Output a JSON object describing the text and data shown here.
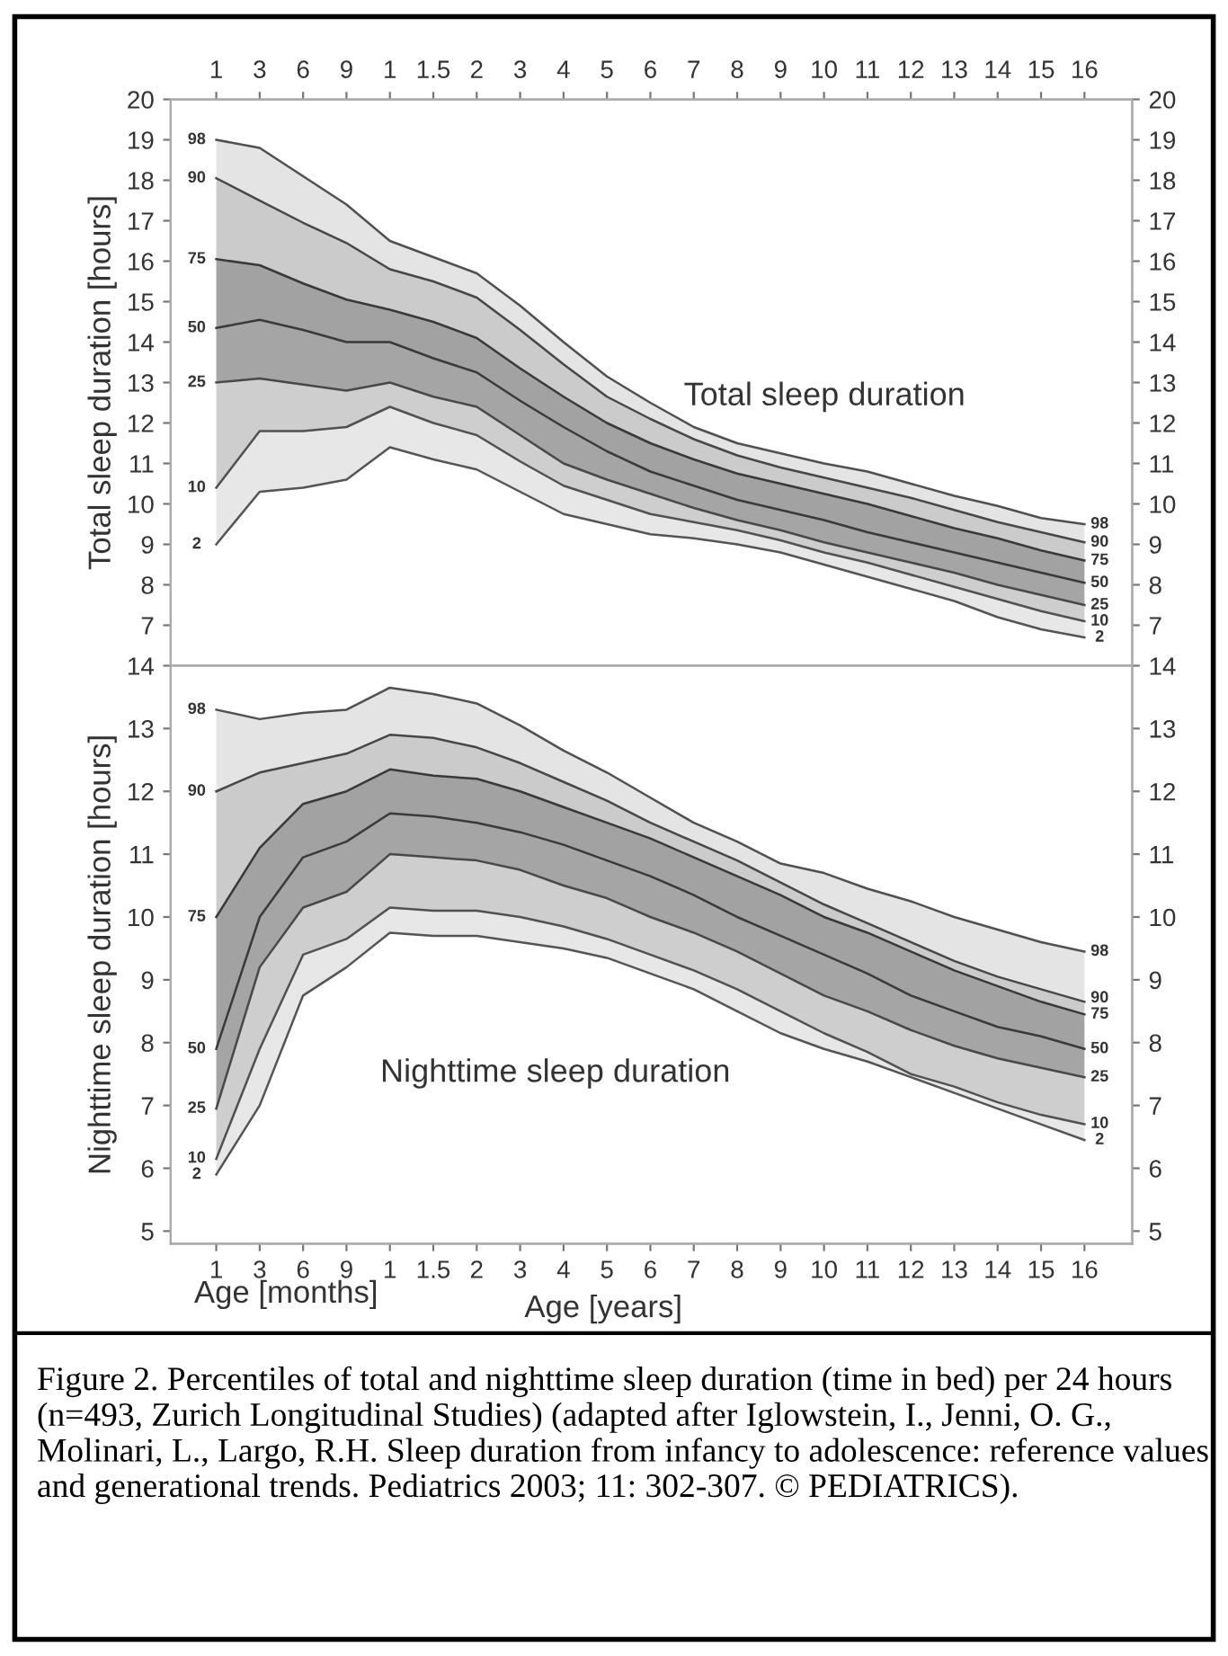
{
  "chart_data": [
    {
      "type": "area",
      "title": "Total sleep duration",
      "ylabel": "Total sleep duration [hours]",
      "categories": [
        "1",
        "3",
        "6",
        "9",
        "1",
        "1.5",
        "2",
        "3",
        "4",
        "5",
        "6",
        "7",
        "8",
        "9",
        "10",
        "11",
        "12",
        "13",
        "14",
        "15",
        "16"
      ],
      "ylim": [
        6,
        20
      ],
      "yticks": [
        7,
        8,
        9,
        10,
        11,
        12,
        13,
        14,
        15,
        16,
        17,
        18,
        19,
        20
      ],
      "y2lim": [
        6,
        20
      ],
      "y2ticks": [
        7,
        8,
        9,
        10,
        11,
        12,
        13,
        14,
        15,
        16,
        17,
        18,
        19,
        20
      ],
      "grid": false,
      "legend": false,
      "marker": "none",
      "line_style": "solid",
      "series": [
        {
          "name": "98",
          "color": "#e4e4e4",
          "values": [
            19.0,
            18.8,
            18.1,
            17.4,
            16.5,
            16.1,
            15.7,
            14.9,
            14.0,
            13.15,
            12.5,
            11.9,
            11.5,
            11.25,
            11.0,
            10.8,
            10.5,
            10.2,
            9.95,
            9.65,
            9.5
          ]
        },
        {
          "name": "90",
          "color": "#cbcbcb",
          "values": [
            18.05,
            17.5,
            16.95,
            16.45,
            15.8,
            15.5,
            15.1,
            14.3,
            13.45,
            12.65,
            12.1,
            11.6,
            11.2,
            10.9,
            10.65,
            10.4,
            10.15,
            9.85,
            9.55,
            9.3,
            9.05
          ]
        },
        {
          "name": "75",
          "color": "#a2a2a2",
          "values": [
            16.05,
            15.9,
            15.45,
            15.05,
            14.8,
            14.5,
            14.1,
            13.35,
            12.65,
            12.0,
            11.5,
            11.1,
            10.75,
            10.5,
            10.25,
            10.0,
            9.7,
            9.4,
            9.15,
            8.85,
            8.6
          ]
        },
        {
          "name": "50",
          "color": "#a5a5a5",
          "values": [
            14.35,
            14.55,
            14.3,
            14.0,
            14.0,
            13.6,
            13.25,
            12.55,
            11.9,
            11.3,
            10.8,
            10.45,
            10.1,
            9.85,
            9.6,
            9.3,
            9.05,
            8.8,
            8.55,
            8.3,
            8.05
          ]
        },
        {
          "name": "25",
          "color": "#cecece",
          "values": [
            13.0,
            13.1,
            12.95,
            12.8,
            13.0,
            12.65,
            12.4,
            11.7,
            11.0,
            10.6,
            10.25,
            9.9,
            9.6,
            9.35,
            9.05,
            8.8,
            8.55,
            8.3,
            8.0,
            7.75,
            7.5
          ]
        },
        {
          "name": "10",
          "color": "#e7e7e7",
          "values": [
            10.4,
            11.8,
            11.8,
            11.9,
            12.4,
            12.0,
            11.7,
            11.05,
            10.45,
            10.1,
            9.75,
            9.55,
            9.35,
            9.1,
            8.8,
            8.55,
            8.25,
            7.95,
            7.65,
            7.35,
            7.1
          ]
        },
        {
          "name": "2",
          "type": "line",
          "color": "#555555",
          "values": [
            9.0,
            10.3,
            10.4,
            10.6,
            11.4,
            11.1,
            10.85,
            10.3,
            9.75,
            9.5,
            9.25,
            9.15,
            9.0,
            8.8,
            8.5,
            8.2,
            7.9,
            7.6,
            7.2,
            6.9,
            6.7
          ]
        }
      ]
    },
    {
      "type": "area",
      "title": "Nighttime sleep duration",
      "ylabel": "Nighttime sleep duration [hours]",
      "xlabel": "Age [years]",
      "annotations": [
        "Age [months]",
        "Figure 2. Percentiles of total and nighttime sleep duration (time in bed) per 24 hours (n=493, Zurich Longitudinal Studies) (adapted after Iglowstein, I., Jenni, O. G., Molinari, L., Largo, R.H. Sleep duration from infancy to adolescence: reference values and generational trends. Pediatrics 2003; 11: 302-307. © PEDIATRICS)."
      ],
      "categories": [
        "1",
        "3",
        "6",
        "9",
        "1",
        "1.5",
        "2",
        "3",
        "4",
        "5",
        "6",
        "7",
        "8",
        "9",
        "10",
        "11",
        "12",
        "13",
        "14",
        "15",
        "16"
      ],
      "ylim": [
        4.8,
        14
      ],
      "yticks": [
        5,
        6,
        7,
        8,
        9,
        10,
        11,
        12,
        13,
        14
      ],
      "y2lim": [
        4.8,
        14
      ],
      "y2ticks": [
        5,
        6,
        7,
        8,
        9,
        10,
        11,
        12,
        13,
        14
      ],
      "grid": false,
      "legend": false,
      "marker": "none",
      "line_style": "solid",
      "series": [
        {
          "name": "98",
          "color": "#e4e4e4",
          "values": [
            13.3,
            13.15,
            13.25,
            13.3,
            13.65,
            13.55,
            13.4,
            13.05,
            12.65,
            12.3,
            11.9,
            11.5,
            11.2,
            10.85,
            10.7,
            10.45,
            10.25,
            10.0,
            9.8,
            9.6,
            9.45
          ]
        },
        {
          "name": "90",
          "color": "#cbcbcb",
          "values": [
            12.0,
            12.3,
            12.45,
            12.6,
            12.9,
            12.85,
            12.7,
            12.45,
            12.15,
            11.85,
            11.5,
            11.2,
            10.9,
            10.55,
            10.2,
            9.9,
            9.6,
            9.3,
            9.05,
            8.85,
            8.65
          ]
        },
        {
          "name": "75",
          "color": "#a2a2a2",
          "values": [
            10.0,
            11.1,
            11.8,
            12.0,
            12.35,
            12.25,
            12.2,
            12.0,
            11.75,
            11.5,
            11.25,
            10.95,
            10.65,
            10.35,
            10.0,
            9.75,
            9.45,
            9.15,
            8.9,
            8.65,
            8.45
          ]
        },
        {
          "name": "50",
          "color": "#a5a5a5",
          "values": [
            7.9,
            10.0,
            10.95,
            11.2,
            11.65,
            11.6,
            11.5,
            11.35,
            11.15,
            10.9,
            10.65,
            10.35,
            10.0,
            9.7,
            9.4,
            9.1,
            8.75,
            8.5,
            8.25,
            8.1,
            7.9
          ]
        },
        {
          "name": "25",
          "color": "#cecece",
          "values": [
            6.95,
            9.2,
            10.15,
            10.4,
            11.0,
            10.95,
            10.9,
            10.75,
            10.5,
            10.3,
            10.0,
            9.75,
            9.45,
            9.1,
            8.75,
            8.5,
            8.2,
            7.95,
            7.75,
            7.6,
            7.45
          ]
        },
        {
          "name": "10",
          "color": "#e7e7e7",
          "values": [
            6.15,
            7.9,
            9.4,
            9.65,
            10.15,
            10.1,
            10.1,
            10.0,
            9.85,
            9.65,
            9.4,
            9.15,
            8.85,
            8.5,
            8.15,
            7.85,
            7.5,
            7.3,
            7.05,
            6.85,
            6.7
          ]
        },
        {
          "name": "2",
          "type": "line",
          "color": "#555555",
          "values": [
            5.9,
            7.0,
            8.75,
            9.2,
            9.75,
            9.7,
            9.7,
            9.6,
            9.5,
            9.35,
            9.1,
            8.85,
            8.5,
            8.15,
            7.9,
            7.7,
            7.45,
            7.2,
            6.95,
            6.7,
            6.45
          ]
        }
      ]
    }
  ]
}
